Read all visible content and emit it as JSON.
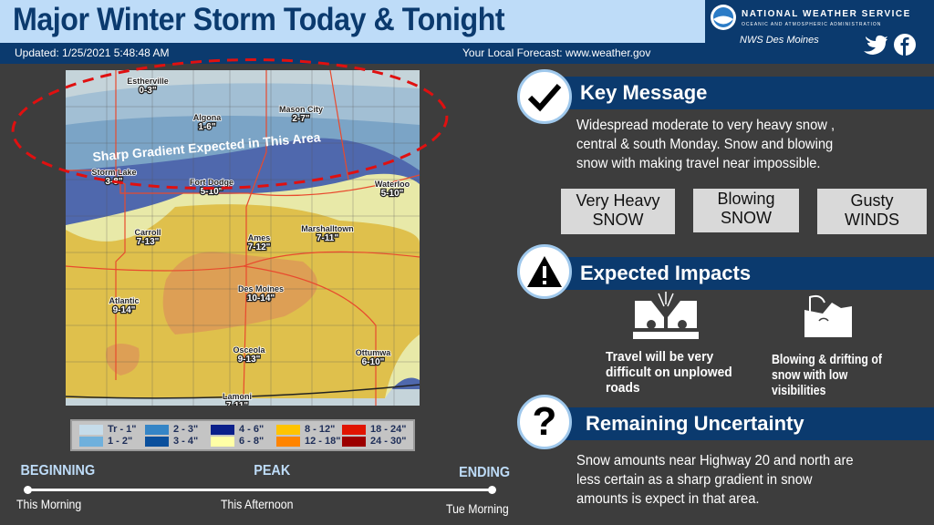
{
  "header": {
    "title": "Major Winter Storm Today & Tonight",
    "updated": "Updated: 1/25/2021 5:48:48 AM",
    "forecast_link": "Your Local Forecast: www.weather.gov"
  },
  "nws": {
    "name": "NATIONAL WEATHER SERVICE",
    "sub": "OCEANIC AND ATMOSPHERIC ADMINISTRATION",
    "office": "NWS Des Moines",
    "social": [
      "twitter-icon",
      "facebook-icon"
    ]
  },
  "map": {
    "annotation": "Sharp Gradient Expected in This Area",
    "cities": [
      {
        "name": "Estherville",
        "amt": "0-3\""
      },
      {
        "name": "Algona",
        "amt": "1-6\""
      },
      {
        "name": "Mason City",
        "amt": "2-7\""
      },
      {
        "name": "Storm Lake",
        "amt": "3-8\""
      },
      {
        "name": "Fort Dodge",
        "amt": "5-10\""
      },
      {
        "name": "Waterloo",
        "amt": "5-10\""
      },
      {
        "name": "Carroll",
        "amt": "7-13\""
      },
      {
        "name": "Ames",
        "amt": "7-12\""
      },
      {
        "name": "Marshalltown",
        "amt": "7-11\""
      },
      {
        "name": "Des Moines",
        "amt": "10-14\""
      },
      {
        "name": "Atlantic",
        "amt": "9-14\""
      },
      {
        "name": "Osceola",
        "amt": "9-13\""
      },
      {
        "name": "Ottumwa",
        "amt": "6-10\""
      },
      {
        "name": "Lamoni",
        "amt": "7-11\""
      }
    ],
    "legend": [
      {
        "label": "Tr - 1\"",
        "color": "#c6dcea"
      },
      {
        "label": "1 - 2\"",
        "color": "#6fb0dc"
      },
      {
        "label": "2 - 3\"",
        "color": "#3585c6"
      },
      {
        "label": "3 - 4\"",
        "color": "#0a4f9c"
      },
      {
        "label": "4 - 6\"",
        "color": "#0a1f8a"
      },
      {
        "label": "6 - 8\"",
        "color": "#ffffa6"
      },
      {
        "label": "8 - 12\"",
        "color": "#ffc400"
      },
      {
        "label": "12 - 18\"",
        "color": "#ff8400"
      },
      {
        "label": "18 - 24\"",
        "color": "#e01400"
      },
      {
        "label": "24 - 30\"",
        "color": "#9c0000"
      }
    ]
  },
  "key_message": {
    "title": "Key Message",
    "lines": [
      "Widespread moderate to very heavy snow ,",
      "central & south Monday.  Snow and blowing",
      "snow with  making travel near impossible."
    ],
    "tags": [
      [
        "Very Heavy",
        "SNOW"
      ],
      [
        "Blowing",
        "SNOW"
      ],
      [
        "Gusty",
        "WINDS"
      ]
    ]
  },
  "impacts": {
    "title": "Expected Impacts",
    "items": [
      {
        "lines": [
          "Travel  will be very",
          "difficult on unplowed",
          "roads"
        ]
      },
      {
        "lines": [
          "Blowing & drifting of",
          "snow with low visibilities"
        ]
      }
    ]
  },
  "uncertainty": {
    "title": "Remaining Uncertainty",
    "lines": [
      "Snow amounts near Highway 20 and north are",
      "less certain as a sharp gradient in snow",
      "amounts is expect in that area."
    ]
  },
  "timeline": {
    "stages": [
      {
        "label": "BEGINNING",
        "time": "This Morning"
      },
      {
        "label": "PEAK",
        "time": "This Afternoon"
      },
      {
        "label": "ENDING",
        "time": "Tue Morning"
      }
    ]
  }
}
